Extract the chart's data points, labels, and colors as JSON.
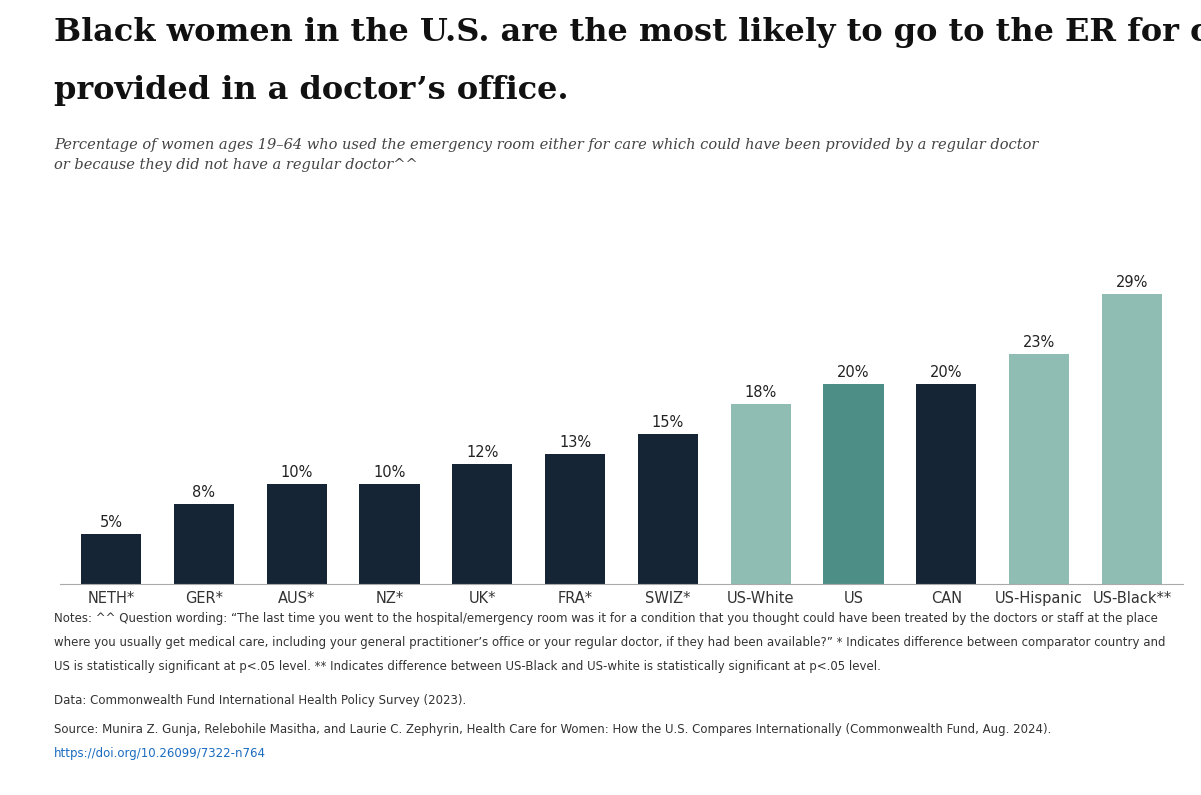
{
  "categories": [
    "NETH*",
    "GER*",
    "AUS*",
    "NZ*",
    "UK*",
    "FRA*",
    "SWIZ*",
    "US-White",
    "US",
    "CAN",
    "US-Hispanic",
    "US-Black**"
  ],
  "values": [
    5,
    8,
    10,
    10,
    12,
    13,
    15,
    18,
    20,
    20,
    23,
    29
  ],
  "bar_colors": [
    "#162535",
    "#162535",
    "#162535",
    "#162535",
    "#162535",
    "#162535",
    "#162535",
    "#8fbcb3",
    "#4d8f87",
    "#162535",
    "#8fbcb3",
    "#8fbcb3"
  ],
  "title_line1": "Black women in the U.S. are the most likely to go to the ER for care that is better",
  "title_line2": "provided in a doctor’s office.",
  "subtitle": "Percentage of women ages 19–64 who used the emergency room either for care which could have been provided by a regular doctor\nor because they did not have a regular doctor^^",
  "notes_line1": "Notes: ^^ Question wording: “The last time you went to the hospital/emergency room was it for a condition that you thought could have been treated by the doctors or staff at the place",
  "notes_line2": "where you usually get medical care, including your general practitioner’s office or your regular doctor, if they had been available?” * Indicates difference between comparator country and",
  "notes_line3": "US is statistically significant at p<.05 level. ** Indicates difference between US-Black and US-white is statistically significant at p<.05 level.",
  "data_line": "Data: Commonwealth Fund International Health Policy Survey (2023).",
  "source_line": "Source: Munira Z. Gunja, Relebohile Masitha, and Laurie C. Zephyrin, Health Care for Women: How the U.S. Compares Internationally (Commonwealth Fund, Aug. 2024).",
  "url": "https://doi.org/10.26099/7322-n764",
  "background_color": "#ffffff",
  "title_fontsize": 23,
  "subtitle_fontsize": 10.5,
  "bar_label_fontsize": 10.5,
  "tick_fontsize": 10.5,
  "notes_fontsize": 8.5,
  "ylim": [
    0,
    35
  ]
}
